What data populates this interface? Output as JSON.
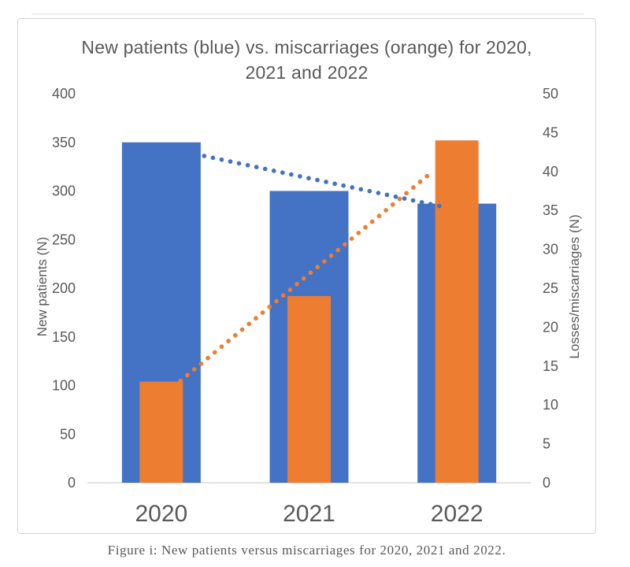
{
  "page": {
    "caption": "Figure i: New patients versus miscarriages for 2020, 2021 and 2022."
  },
  "chart": {
    "title_lines": [
      "New patients (blue) vs. miscarriages (orange) for 2020,",
      "2021 and 2022"
    ],
    "left_axis": {
      "title": "New patients (N)",
      "min": 0,
      "max": 400,
      "step": 50
    },
    "right_axis": {
      "title": "Losses/miscarriages (N)",
      "min": 0,
      "max": 50,
      "step": 5
    },
    "colors": {
      "blue": "#4472C4",
      "orange": "#ED7D31",
      "text": "#595959",
      "axis_line": "#d9d9d9"
    }
  },
  "chart_data": {
    "type": "bar",
    "title": "New patients (blue) vs. miscarriages (orange) for 2020, 2021 and 2022",
    "categories": [
      "2020",
      "2021",
      "2022"
    ],
    "series": [
      {
        "name": "New patients",
        "axis": "left",
        "color": "#4472C4",
        "values": [
          350,
          300,
          287
        ]
      },
      {
        "name": "Losses/miscarriages",
        "axis": "right",
        "color": "#ED7D31",
        "values": [
          13,
          24,
          44
        ]
      }
    ],
    "trendlines": [
      {
        "series": "New patients",
        "axis": "left",
        "color": "#4472C4",
        "style": "dotted",
        "from": {
          "year": 2020.29,
          "value": 336
        },
        "to": {
          "year": 2021.93,
          "value": 283
        }
      },
      {
        "series": "Losses/miscarriages",
        "axis": "right",
        "color": "#ED7D31",
        "style": "dotted",
        "from": {
          "year": 2020.13,
          "value": 13.1
        },
        "to": {
          "year": 2021.81,
          "value": 39.6
        }
      }
    ],
    "xlabel": "",
    "ylabel_left": "New patients (N)",
    "ylabel_right": "Losses/miscarriages (N)",
    "ylim_left": [
      0,
      400
    ],
    "ytick_left": 50,
    "ylim_right": [
      0,
      50
    ],
    "ytick_right": 5,
    "legend": "none",
    "grid": false
  }
}
